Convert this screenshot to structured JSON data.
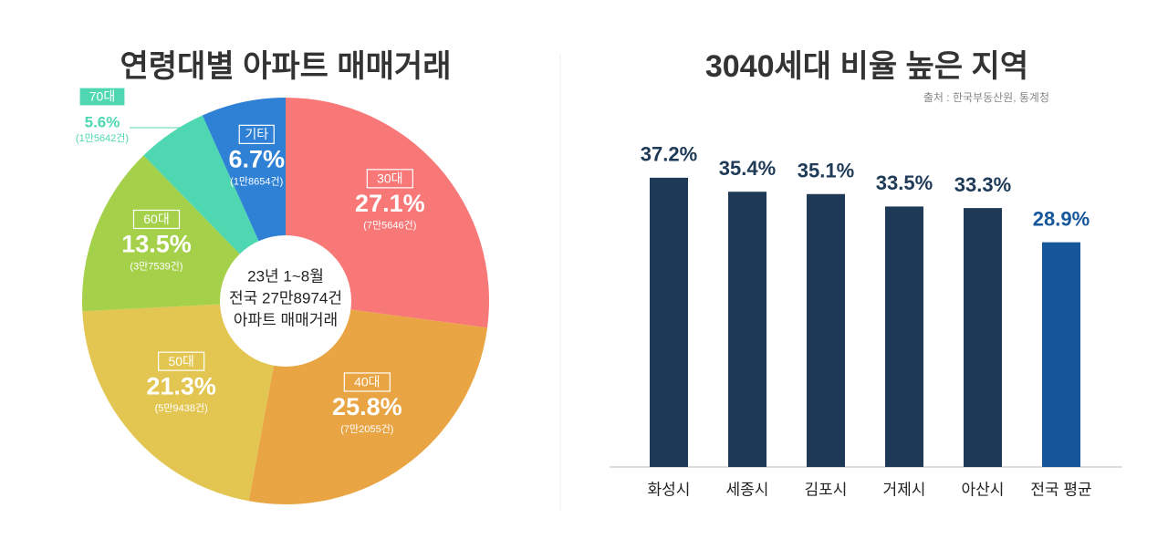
{
  "chart_data": [
    {
      "type": "pie",
      "title": "연령대별 아파트 매매거래",
      "categories": [
        "30대",
        "40대",
        "50대",
        "60대",
        "70대",
        "기타"
      ],
      "values": [
        27.1,
        25.8,
        21.3,
        13.5,
        5.6,
        6.7
      ],
      "value_labels": [
        "27.1%",
        "25.8%",
        "21.3%",
        "13.5%",
        "5.6%",
        "6.7%"
      ],
      "sublabels": [
        "(7만5646건)",
        "(7만2055건)",
        "(5만9438건)",
        "(3만7539건)",
        "(1만5642건)",
        "(1만8654건)"
      ],
      "colors": [
        "#f87878",
        "#e9a444",
        "#e2c651",
        "#a4d04a",
        "#4fd7b1",
        "#2f81d5"
      ],
      "center_text": [
        "23년 1~8월",
        "전국 27만8974건",
        "아파트 매매거래"
      ]
    },
    {
      "type": "bar",
      "title": "3040세대 비율 높은 지역",
      "subtitle": "출처 : 한국부동산원, 통계청",
      "categories": [
        "화성시",
        "세종시",
        "김포시",
        "거제시",
        "아산시",
        "전국 평균"
      ],
      "values": [
        37.2,
        35.4,
        35.1,
        33.5,
        33.3,
        28.9
      ],
      "value_labels": [
        "37.2%",
        "35.4%",
        "35.1%",
        "33.5%",
        "33.3%",
        "28.9%"
      ],
      "colors": [
        "#1e3a57",
        "#1e3a57",
        "#1e3a57",
        "#1e3a57",
        "#1e3a57",
        "#16569a"
      ],
      "ylim": [
        0,
        40
      ]
    }
  ]
}
